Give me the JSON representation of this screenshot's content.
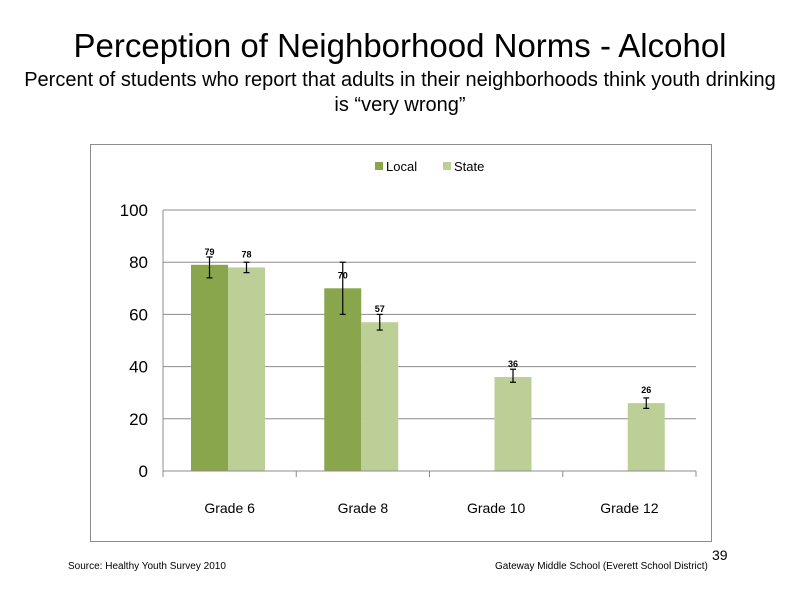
{
  "slide": {
    "title": "Perception  of Neighborhood  Norms - Alcohol",
    "subtitle": "Percent of students  who report that adults in their neighborhoods  think youth drinking  is “very wrong”",
    "source": "Source: Healthy  Youth Survey 2010",
    "school": "Gateway Middle  School (Everett School District)",
    "slide_number": "39"
  },
  "chart_data": {
    "type": "bar",
    "categories": [
      "Grade 6",
      "Grade 8",
      "Grade 10",
      "Grade 12"
    ],
    "series": [
      {
        "name": "Local",
        "color": "#8aa64d",
        "values": [
          79,
          70,
          null,
          null
        ],
        "labels": [
          "79",
          "70",
          "",
          ""
        ],
        "error_low": [
          74,
          60,
          null,
          null
        ],
        "error_high": [
          82,
          80,
          null,
          null
        ]
      },
      {
        "name": "State",
        "color": "#bccf97",
        "values": [
          78,
          57,
          36,
          26
        ],
        "labels": [
          "78",
          "57",
          "36",
          "26"
        ],
        "error_low": [
          76,
          54,
          34,
          24
        ],
        "error_high": [
          80,
          60,
          39,
          28
        ]
      }
    ],
    "ylim": [
      0,
      100
    ],
    "yticks": [
      "0",
      "20",
      "40",
      "60",
      "80",
      "100"
    ],
    "grid": true,
    "legend_position": "top-center"
  }
}
